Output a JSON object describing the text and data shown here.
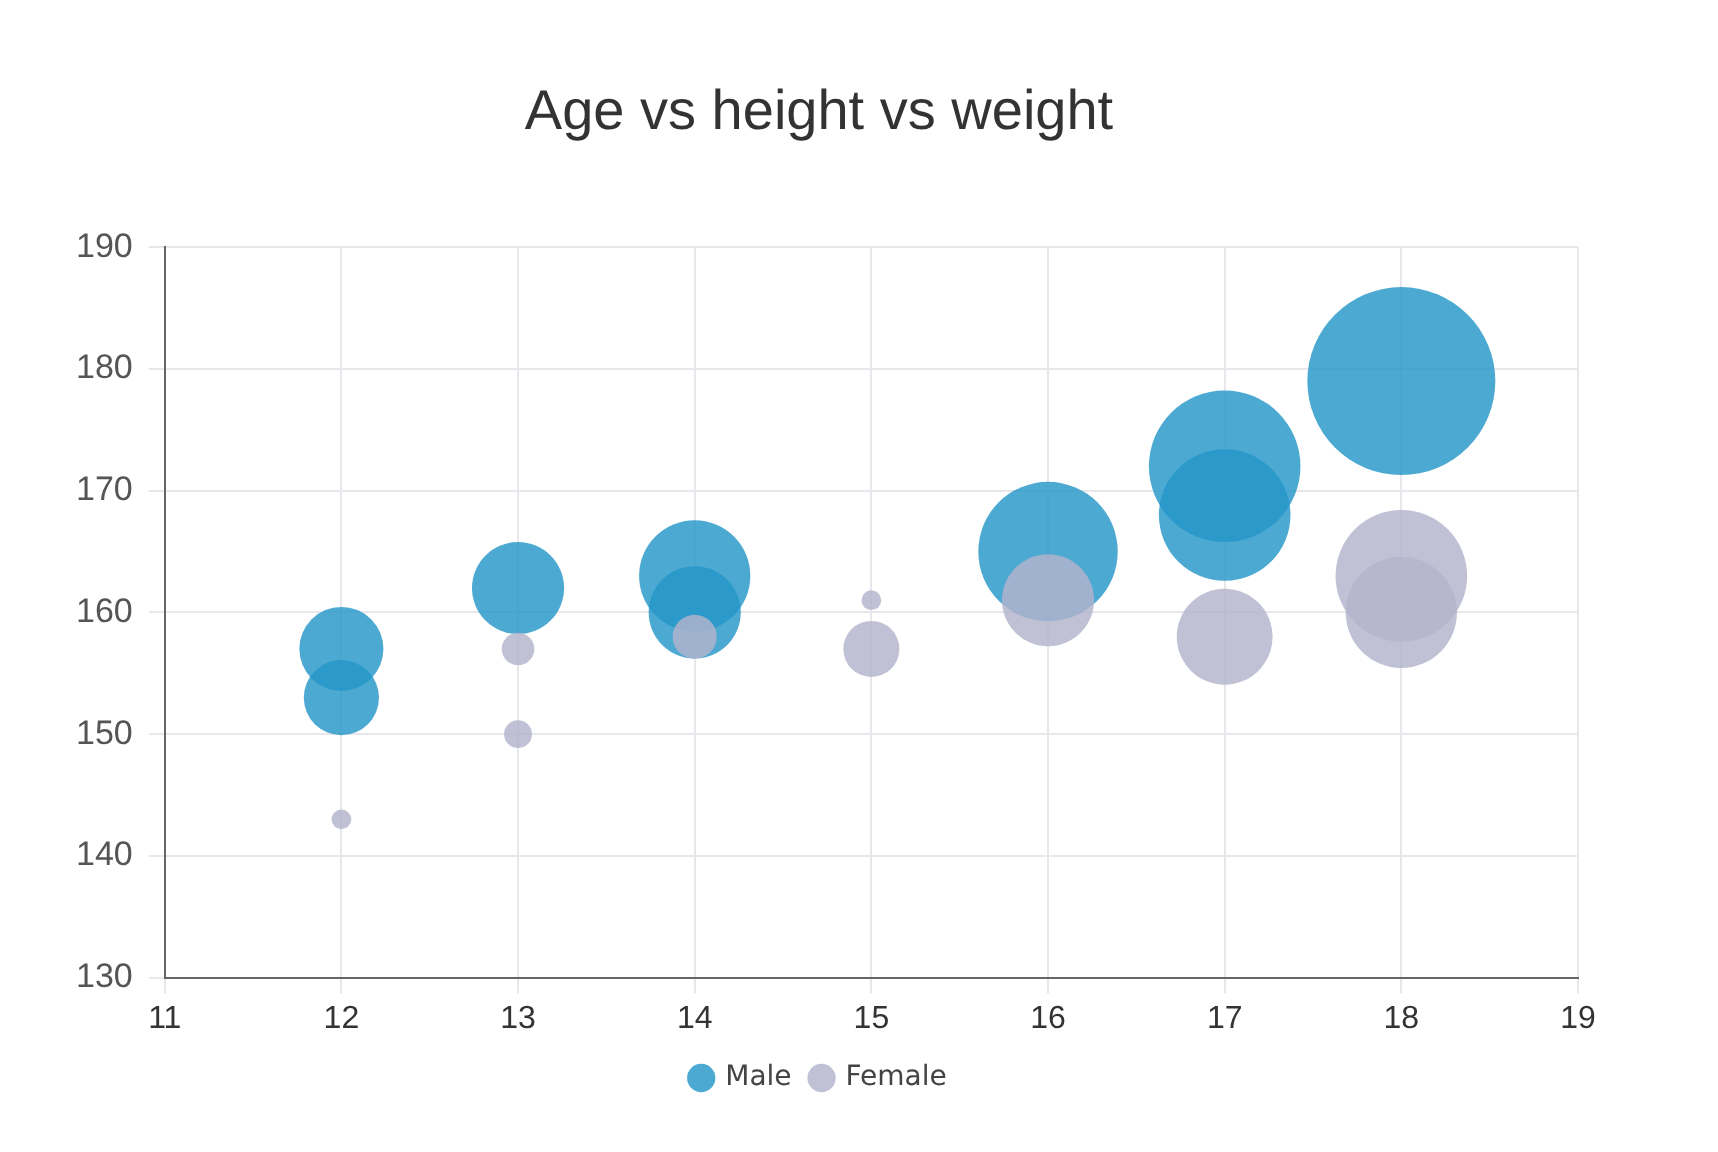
{
  "chart_data": {
    "type": "bubble",
    "title": "Age vs height vs weight",
    "xlim": [
      11,
      19
    ],
    "xticks": [
      11,
      12,
      13,
      14,
      15,
      16,
      17,
      18,
      19
    ],
    "ylim": [
      130,
      190
    ],
    "yticks": [
      130,
      140,
      150,
      160,
      170,
      180,
      190
    ],
    "grid": true,
    "legend": "bottom",
    "marker": "circle",
    "series": [
      {
        "name": "Male",
        "color": "#2596c8",
        "x": [
          12,
          12,
          13,
          14,
          14,
          16,
          17,
          17,
          18
        ],
        "values": [
          157,
          153,
          162,
          163,
          160,
          165,
          172,
          168,
          179
        ],
        "sizes": [
          0.2,
          0.16,
          0.24,
          0.35,
          0.24,
          0.55,
          0.65,
          0.49,
          1
        ]
      },
      {
        "name": "Female",
        "color": "#b3b3cc",
        "x": [
          12,
          13,
          13,
          14,
          15,
          15,
          16,
          17,
          18,
          18
        ],
        "values": [
          143,
          157,
          150,
          158,
          161,
          157,
          161,
          158,
          163,
          160
        ],
        "sizes": [
          0.011,
          0.03,
          0.022,
          0.055,
          0.011,
          0.089,
          0.24,
          0.26,
          0.49,
          0.35
        ]
      }
    ]
  }
}
